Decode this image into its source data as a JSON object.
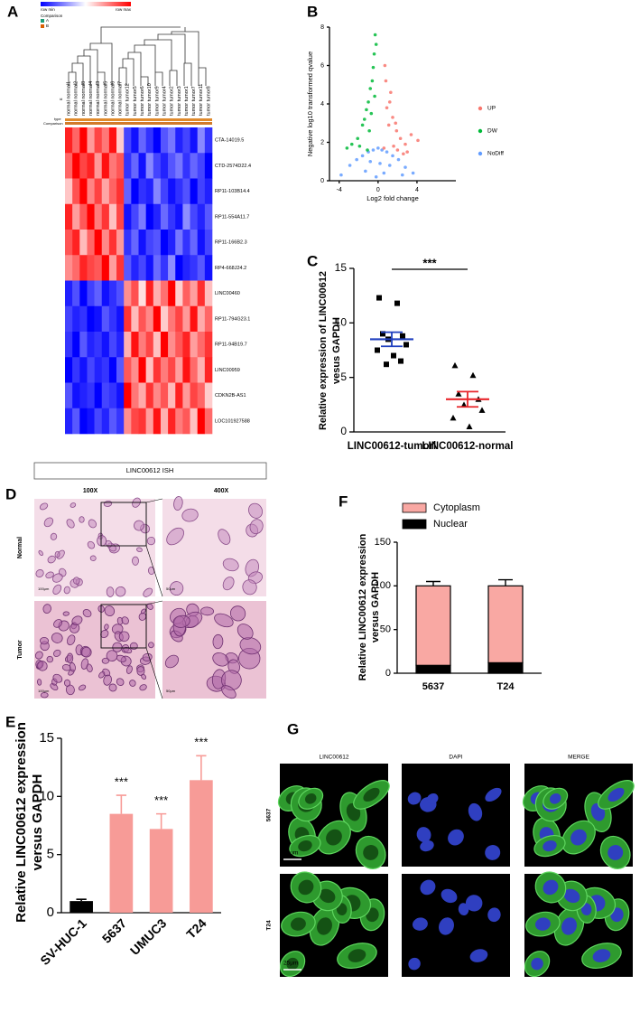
{
  "panel_labels": [
    "A",
    "B",
    "C",
    "D",
    "E",
    "F",
    "G"
  ],
  "chart_data": [
    {
      "type": "heatmap",
      "legend_min": "row min",
      "legend_max": "row max",
      "annotation_title": "Comparison",
      "annotation_levels": [
        "A",
        "B"
      ],
      "track_labels": [
        "id",
        "type",
        "Comparison"
      ],
      "columns": [
        "normal normal1",
        "normal normal2",
        "normal normal8",
        "normal normal4",
        "normal normal3",
        "normal normal5",
        "normal normal6",
        "normal normal7",
        "tumor tumor12",
        "tumor tumor5",
        "tumor tumor6",
        "tumor tumor10",
        "tumor tumor9",
        "tumor tumor4",
        "tumor tumor2",
        "tumor tumor3",
        "tumor tumor1",
        "tumor tumor7",
        "tumor tumor11",
        "tumor tumor8"
      ],
      "rows": [
        "CTA-14019.5",
        "CTD-2574D22.4",
        "RP11-103B14.4",
        "RP11-554A11.7",
        "RP11-166B2.3",
        "RP4-668J24.2",
        "LINC00460",
        "RP11-794G23.1",
        "RP11-94B19.7",
        "LINC00959",
        "CDKN2B-AS1",
        "LOC101927588"
      ],
      "values": [
        [
          1.6,
          1.2,
          1.8,
          0.9,
          1.4,
          1.1,
          1.7,
          0.6,
          -0.8,
          -1.1,
          -0.6,
          -0.9,
          -1.2,
          -0.7,
          -0.5,
          -1.0,
          -0.8,
          -1.1,
          -0.4,
          -0.9
        ],
        [
          1.1,
          1.7,
          1.3,
          1.5,
          0.8,
          1.6,
          1.0,
          1.2,
          -1.0,
          -0.7,
          -1.2,
          -0.5,
          -0.9,
          -1.1,
          -0.8,
          -0.6,
          -1.0,
          -0.7,
          -0.9,
          -1.3
        ],
        [
          0.7,
          1.4,
          1.9,
          1.1,
          1.5,
          0.9,
          1.3,
          1.6,
          -0.6,
          -1.2,
          -0.9,
          -1.0,
          -0.4,
          -0.8,
          -1.1,
          -0.9,
          -0.7,
          -1.2,
          -0.8,
          -1.0
        ],
        [
          1.5,
          0.8,
          1.2,
          1.7,
          1.0,
          1.4,
          0.6,
          1.3,
          -1.1,
          -0.8,
          -0.5,
          -1.2,
          -1.0,
          -0.6,
          -0.9,
          -1.1,
          -0.4,
          -0.8,
          -1.0,
          -0.7
        ],
        [
          1.3,
          1.6,
          0.7,
          1.2,
          1.8,
          1.0,
          1.5,
          0.9,
          -0.9,
          -0.6,
          -1.1,
          -0.8,
          -0.7,
          -1.2,
          -1.0,
          -0.5,
          -0.9,
          -0.6,
          -1.1,
          -0.8
        ],
        [
          0.9,
          1.1,
          1.5,
          1.3,
          1.2,
          1.7,
          0.8,
          1.4,
          -0.7,
          -1.0,
          -0.8,
          -1.1,
          -0.6,
          -0.9,
          -0.4,
          -1.2,
          -1.0,
          -0.9,
          -0.7,
          -1.1
        ],
        [
          -1.2,
          -0.9,
          -1.4,
          -1.0,
          -0.8,
          -1.3,
          -1.1,
          -0.9,
          0.9,
          1.3,
          0.4,
          1.6,
          0.7,
          1.1,
          1.8,
          0.5,
          1.2,
          0.8,
          1.5,
          0.6
        ],
        [
          -0.9,
          -1.1,
          -1.0,
          -1.3,
          -1.2,
          -0.8,
          -1.0,
          -1.2,
          1.4,
          0.6,
          1.2,
          0.9,
          1.7,
          0.5,
          1.0,
          1.3,
          0.8,
          1.6,
          0.7,
          1.1
        ],
        [
          -1.0,
          -1.3,
          -0.8,
          -1.1,
          -1.0,
          -1.2,
          -0.9,
          -1.1,
          0.6,
          1.5,
          0.9,
          1.2,
          0.5,
          1.6,
          0.8,
          1.1,
          1.4,
          0.7,
          1.0,
          1.3
        ],
        [
          -1.3,
          -1.0,
          -1.2,
          -0.9,
          -1.1,
          -1.0,
          -1.3,
          -0.8,
          1.1,
          0.8,
          1.6,
          0.5,
          1.3,
          0.9,
          1.2,
          0.7,
          1.5,
          1.0,
          0.6,
          1.4
        ],
        [
          -0.8,
          -1.2,
          -1.1,
          -1.0,
          -1.3,
          -0.9,
          -1.0,
          -1.2,
          1.7,
          1.0,
          0.7,
          1.4,
          0.9,
          1.2,
          0.6,
          1.5,
          0.8,
          1.3,
          1.1,
          0.5
        ],
        [
          -1.1,
          -0.8,
          -1.3,
          -1.2,
          -0.9,
          -1.1,
          -0.8,
          -1.0,
          0.8,
          1.2,
          1.3,
          0.7,
          1.5,
          0.6,
          1.4,
          0.9,
          1.1,
          0.5,
          1.6,
          1.0
        ]
      ],
      "colors": [
        "#0000ff",
        "#ffffff",
        "#ff0000"
      ]
    },
    {
      "type": "scatter",
      "xlabel": "Log2 fold change",
      "ylabel": "Negative log10 transformed qvalue",
      "xlim": [
        -5,
        8
      ],
      "ylim": [
        0,
        8
      ],
      "xticks": [
        -4,
        0,
        4
      ],
      "yticks": [
        0,
        2,
        4,
        6,
        8
      ],
      "series": [
        {
          "name": "UP",
          "color": "#f8766d",
          "x": [
            0.8,
            1.2,
            1.5,
            1.9,
            2.3,
            2.8,
            3.4,
            4.1,
            0.9,
            1.1,
            1.6,
            2.0,
            2.6,
            0.7,
            1.3,
            3.0,
            1.8,
            0.6
          ],
          "y": [
            5.2,
            4.1,
            3.3,
            2.6,
            2.2,
            1.9,
            2.4,
            2.1,
            3.8,
            2.9,
            1.8,
            1.6,
            1.4,
            6.0,
            4.6,
            1.5,
            3.0,
            1.7
          ]
        },
        {
          "name": "DW",
          "color": "#00ba38",
          "x": [
            -0.3,
            -0.5,
            -0.8,
            -1.2,
            -1.6,
            -2.1,
            -2.7,
            -0.4,
            -0.6,
            -1.0,
            -1.4,
            -0.2,
            -0.9,
            -1.9,
            -0.7,
            -3.2,
            -0.35,
            -1.1
          ],
          "y": [
            7.6,
            5.9,
            4.8,
            3.7,
            2.9,
            2.2,
            1.9,
            6.6,
            5.2,
            4.1,
            3.2,
            7.1,
            2.6,
            1.8,
            3.5,
            1.7,
            4.4,
            1.6
          ]
        },
        {
          "name": "NoDiff",
          "color": "#619cff",
          "x": [
            -3.8,
            -2.9,
            -2.2,
            -1.6,
            -1.0,
            -0.5,
            0,
            0.4,
            0.9,
            1.5,
            2.1,
            2.8,
            3.6,
            -1.3,
            0.2,
            -0.2,
            0.6,
            1.2,
            -0.8,
            2.5
          ],
          "y": [
            0.3,
            0.8,
            1.1,
            1.3,
            1.5,
            1.6,
            1.7,
            1.6,
            1.5,
            1.3,
            1.1,
            0.7,
            0.4,
            0.5,
            0.9,
            0.2,
            0.4,
            0.8,
            1.0,
            0.3
          ]
        }
      ]
    },
    {
      "type": "dot",
      "ylabel": [
        "Relative expression of LINC00612",
        "vesus GAPDH"
      ],
      "categories": [
        "LINC00612-tumorl",
        "LINC00612-normal"
      ],
      "significance": "***",
      "ylim": [
        0,
        15
      ],
      "yticks": [
        0,
        5,
        10,
        15
      ],
      "groups": [
        {
          "color": "#1f3fbf",
          "values": [
            12.3,
            11.8,
            9.0,
            8.8,
            8.5,
            8.0,
            7.5,
            7.0,
            6.5,
            6.2
          ],
          "mean": 8.5,
          "error": 0.65
        },
        {
          "color": "#e8262b",
          "values": [
            6.1,
            5.2,
            3.5,
            3.0,
            2.5,
            2.0,
            1.3,
            0.5
          ],
          "mean": 3.0,
          "error": 0.7
        }
      ]
    },
    {
      "type": "bar",
      "ylabel": [
        "Relative LINC00612 expression",
        "versus GAPDH"
      ],
      "categories": [
        "SV-HUC-1",
        "5637",
        "UMUC3",
        "T24"
      ],
      "values": [
        1.0,
        8.5,
        7.2,
        11.4
      ],
      "errors": [
        0.15,
        1.6,
        1.3,
        2.1
      ],
      "colors": [
        "#000000",
        "#f79b97",
        "#f79b97",
        "#f79b97"
      ],
      "annotations": [
        null,
        "***",
        "***",
        "***"
      ],
      "ylim": [
        0,
        15
      ],
      "yticks": [
        0,
        5,
        10,
        15
      ]
    },
    {
      "type": "stacked_bar",
      "ylabel": [
        "Relative LINC00612 expression",
        "versus GAPDH"
      ],
      "categories": [
        "5637",
        "T24"
      ],
      "series": [
        {
          "name": "Nuclear",
          "color": "#000000",
          "values": [
            9,
            12
          ],
          "errors": [
            2,
            3
          ]
        },
        {
          "name": "Cytoplasm",
          "color": "#f9a8a3",
          "values": [
            91,
            88
          ],
          "errors": [
            5,
            7
          ]
        }
      ],
      "ylim": [
        0,
        150
      ],
      "yticks": [
        0,
        50,
        100,
        150
      ]
    }
  ],
  "ish_panel": {
    "title": "LINC00612 ISH",
    "columns": [
      "100X",
      "400X"
    ],
    "rows": [
      "Normal",
      "Tumor"
    ],
    "scale_bars": [
      "100μm",
      "50μm"
    ]
  },
  "if_panel": {
    "columns": [
      "LINC00612",
      "DAPI",
      "MERGE"
    ],
    "rows": [
      "5637",
      "T24"
    ],
    "scale_bar": "25μm"
  }
}
